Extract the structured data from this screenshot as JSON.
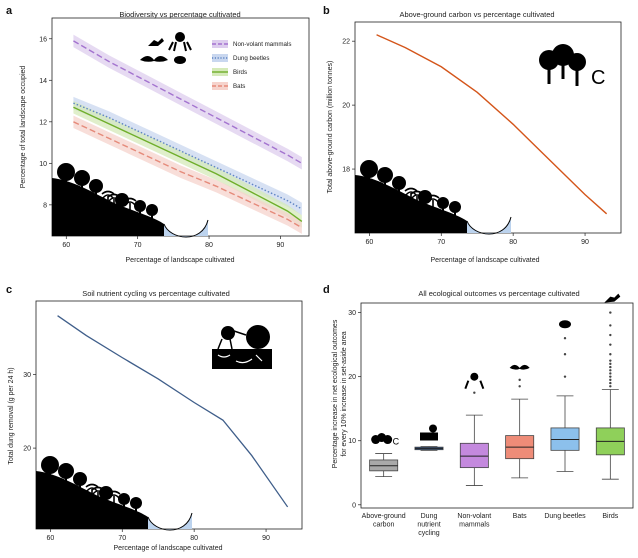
{
  "chart_data": [
    {
      "panel": "a",
      "type": "line",
      "title": "Biodiversity vs percentage cultivated",
      "xlabel": "Percentage of landscape cultivated",
      "ylabel": "Percentage of total landscape occupied",
      "xlim": [
        58,
        94
      ],
      "ylim": [
        6.5,
        17
      ],
      "xticks": [
        60,
        70,
        80,
        90
      ],
      "yticks": [
        8,
        10,
        12,
        14,
        16
      ],
      "legend_position": "top-right",
      "series": [
        {
          "name": "Non-volant mammals",
          "color": "#a373cf",
          "style": "dashed",
          "band_color": "#ddcdee",
          "x": [
            61,
            66,
            71,
            76,
            81,
            86,
            91,
            93
          ],
          "y": [
            15.9,
            14.9,
            14.0,
            13.1,
            12.2,
            11.3,
            10.4,
            10.0
          ]
        },
        {
          "name": "Dung beetles",
          "color": "#5e84c4",
          "style": "dotted",
          "band_color": "#c9d7ef",
          "x": [
            61,
            66,
            71,
            76,
            81,
            86,
            91,
            93
          ],
          "y": [
            12.9,
            12.2,
            11.4,
            10.6,
            9.8,
            9.0,
            8.2,
            7.8
          ]
        },
        {
          "name": "Birds",
          "color": "#6fae2a",
          "style": "solid",
          "band_color": "#d5eab9",
          "x": [
            61,
            66,
            71,
            76,
            81,
            86,
            91,
            93
          ],
          "y": [
            12.7,
            11.9,
            11.1,
            10.3,
            9.5,
            8.6,
            7.7,
            7.2
          ]
        },
        {
          "name": "Bats",
          "color": "#e58a7a",
          "style": "dashed",
          "band_color": "#f6d3cc",
          "x": [
            61,
            66,
            71,
            76,
            81,
            86,
            91,
            93
          ],
          "y": [
            12.0,
            11.2,
            10.4,
            9.6,
            8.9,
            8.1,
            7.3,
            6.9
          ]
        }
      ]
    },
    {
      "panel": "b",
      "type": "line",
      "title": "Above-ground carbon vs percentage cultivated",
      "xlabel": "Percentage of landscape cultivated",
      "ylabel": "Total above-ground carbon (million tonnes)",
      "xlim": [
        58,
        95
      ],
      "ylim": [
        16,
        22.6
      ],
      "xticks": [
        60,
        70,
        80,
        90
      ],
      "yticks": [
        18,
        20,
        22
      ],
      "series": [
        {
          "color": "#d4551a",
          "x": [
            61,
            65,
            70,
            75,
            80,
            85,
            90,
            93
          ],
          "y": [
            22.2,
            21.8,
            21.2,
            20.4,
            19.4,
            18.3,
            17.2,
            16.6
          ]
        }
      ],
      "annotations": [
        "C"
      ]
    },
    {
      "panel": "c",
      "type": "line",
      "title": "Soil nutrient cycling vs percentage cultivated",
      "xlabel": "Percentage of landscape cultivated",
      "ylabel": "Total dung removal (g per 24 h)",
      "xlim": [
        58,
        95
      ],
      "ylim": [
        9,
        40
      ],
      "xticks": [
        60,
        70,
        80,
        90
      ],
      "yticks": [
        20,
        30
      ],
      "series": [
        {
          "color": "#3f5e8a",
          "x": [
            61,
            65,
            70,
            75,
            80,
            84,
            88,
            93
          ],
          "y": [
            38,
            35.3,
            32.3,
            29.4,
            26.2,
            23.8,
            19.0,
            12.0
          ]
        }
      ]
    },
    {
      "panel": "d",
      "type": "box",
      "title": "All ecological outcomes vs percentage cultivated",
      "xlabel": "",
      "ylabel": "Percentage increase in net ecological outcomes for every 10% increase in set-aside area",
      "ylim": [
        -0.5,
        31.5
      ],
      "yticks": [
        0,
        10,
        20,
        30
      ],
      "categories": [
        "Above-ground carbon",
        "Dung nutrient cycling",
        "Non-volant mammals",
        "Bats",
        "Dung beetles",
        "Birds"
      ],
      "boxes": [
        {
          "min": 4.4,
          "q1": 5.3,
          "median": 6.1,
          "q3": 7.0,
          "max": 8.0,
          "color": "#a9a9a9",
          "outliers": []
        },
        {
          "min": 8.5,
          "q1": 8.6,
          "median": 8.8,
          "q3": 9.0,
          "max": 9.1,
          "color": "#2d5a96",
          "outliers": []
        },
        {
          "min": 3.0,
          "q1": 5.8,
          "median": 7.6,
          "q3": 9.6,
          "max": 14.0,
          "color": "#c489de",
          "outliers": [
            17.5
          ]
        },
        {
          "min": 4.2,
          "q1": 7.2,
          "median": 9.0,
          "q3": 10.8,
          "max": 16.5,
          "color": "#ee8c78",
          "outliers": [
            18.5,
            19.5
          ]
        },
        {
          "min": 5.2,
          "q1": 8.5,
          "median": 10.2,
          "q3": 12.0,
          "max": 17.0,
          "color": "#8cc0ec",
          "outliers": [
            20.0,
            23.5,
            26.0
          ]
        },
        {
          "min": 4.0,
          "q1": 7.8,
          "median": 9.9,
          "q3": 12.0,
          "max": 18.0,
          "color": "#8fd05a",
          "outliers": [
            18.5,
            19.0,
            19.5,
            20.0,
            20.5,
            21.0,
            21.5,
            22.0,
            22.5,
            23.5,
            25.0,
            26.5,
            28.0,
            30.0
          ]
        }
      ]
    }
  ]
}
